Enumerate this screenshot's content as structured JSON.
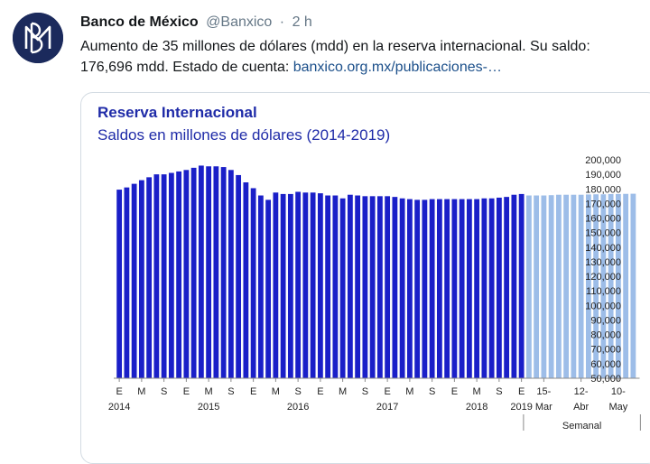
{
  "tweet": {
    "author_name": "Banco de México",
    "handle": "@Banxico",
    "separator": "·",
    "time": "2 h",
    "text_before_link": "Aumento de 35 millones de dólares (mdd) en la reserva internacional. Su saldo: 176,696 mdd. Estado de cuenta: ",
    "link_text": "banxico.org.mx/publicaciones-…",
    "avatar_icon": "banxico-logo-icon",
    "colors": {
      "link": "#1b4f8a",
      "meta": "#657786"
    }
  },
  "chart_data": {
    "type": "bar",
    "title": "Reserva Internacional",
    "subtitle": "Saldos en millones de dólares (2014-2019)",
    "ylim": [
      50000,
      200000
    ],
    "y_ticks": [
      "200,000",
      "190,000",
      "180,000",
      "170,000",
      "160,000",
      "150,000",
      "140,000",
      "130,000",
      "120,000",
      "110,000",
      "100,000",
      "90,000",
      "80,000",
      "70,000",
      "60,000",
      "50,000"
    ],
    "series": [
      {
        "color": "#1a1fc8",
        "values": [
          179500,
          181000,
          183500,
          186000,
          188000,
          190000,
          190000,
          191000,
          192000,
          193000,
          194500,
          196000,
          195500,
          195500,
          195000,
          193000,
          189500,
          184500,
          180500,
          175500,
          172500,
          177500,
          176500,
          176500,
          178000,
          177500,
          177500,
          177000,
          175500,
          175500,
          173500,
          176000,
          175500,
          175000,
          175000,
          175000,
          175000,
          174500,
          173500,
          173000,
          172500,
          172500,
          173000,
          173000,
          173000,
          173000,
          173000,
          173000,
          173000,
          173500,
          173500,
          174000,
          174500,
          176000,
          176500
        ]
      },
      {
        "color": "#9dbde8",
        "values": [
          175500,
          175500,
          175500,
          175700,
          176000,
          176000,
          176000,
          176000,
          176200,
          176300,
          176300,
          176500,
          176500,
          176600,
          176696
        ]
      }
    ],
    "x_tick_labels": [
      {
        "index": 0,
        "text": "E"
      },
      {
        "index": 3,
        "text": "M"
      },
      {
        "index": 6,
        "text": "S"
      },
      {
        "index": 9,
        "text": "E"
      },
      {
        "index": 12,
        "text": "M"
      },
      {
        "index": 15,
        "text": "S"
      },
      {
        "index": 18,
        "text": "E"
      },
      {
        "index": 21,
        "text": "M"
      },
      {
        "index": 24,
        "text": "S"
      },
      {
        "index": 27,
        "text": "E"
      },
      {
        "index": 30,
        "text": "M"
      },
      {
        "index": 33,
        "text": "S"
      },
      {
        "index": 36,
        "text": "E"
      },
      {
        "index": 39,
        "text": "M"
      },
      {
        "index": 42,
        "text": "S"
      },
      {
        "index": 45,
        "text": "E"
      },
      {
        "index": 48,
        "text": "M"
      },
      {
        "index": 51,
        "text": "S"
      },
      {
        "index": 54,
        "text": "E"
      },
      {
        "index": 57,
        "text": "15-"
      },
      {
        "index": 62,
        "text": "12-"
      },
      {
        "index": 67,
        "text": "10-"
      }
    ],
    "x_tick_labels_2": [
      {
        "index": 0,
        "text": "2014"
      },
      {
        "index": 12,
        "text": "2015"
      },
      {
        "index": 24,
        "text": "2016"
      },
      {
        "index": 36,
        "text": "2017"
      },
      {
        "index": 48,
        "text": "2018"
      },
      {
        "index": 54,
        "text": "2019"
      },
      {
        "index": 57,
        "text": "Mar"
      },
      {
        "index": 62,
        "text": "Abr"
      },
      {
        "index": 67,
        "text": "May"
      }
    ],
    "group_label": "Semanal"
  }
}
